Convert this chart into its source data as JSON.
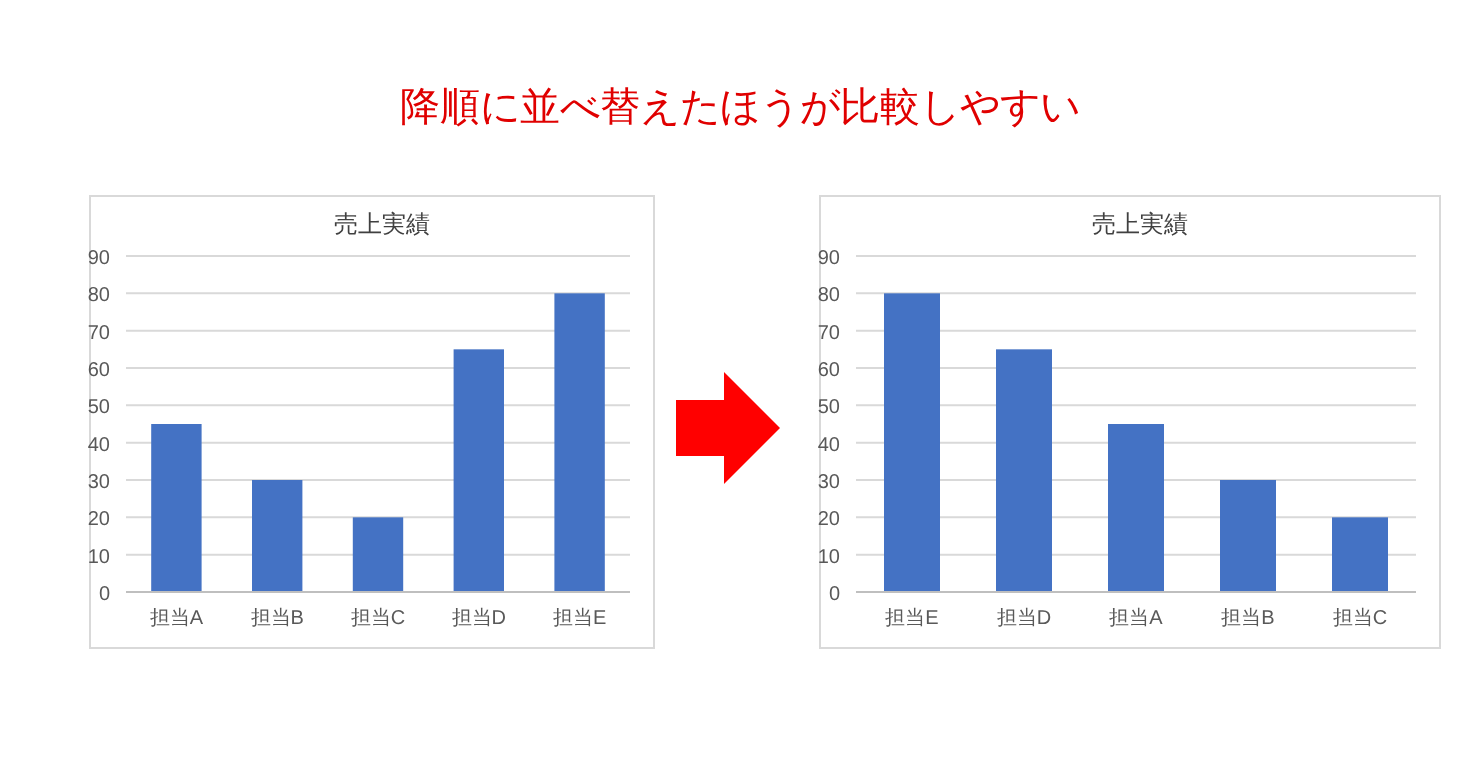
{
  "chart_data": [
    {
      "type": "bar",
      "title": "売上実績",
      "categories": [
        "担当A",
        "担当B",
        "担当C",
        "担当D",
        "担当E"
      ],
      "values": [
        45,
        30,
        20,
        65,
        80
      ],
      "color": "#4472c4",
      "ylim": [
        0,
        90
      ],
      "yticks": [
        0,
        10,
        20,
        30,
        40,
        50,
        60,
        70,
        80,
        90
      ],
      "grid": "y",
      "annotations": [
        "降順に並べ替えたほうが比較しやすい"
      ]
    },
    {
      "type": "bar",
      "title": "売上実績",
      "categories": [
        "担当E",
        "担当D",
        "担当A",
        "担当B",
        "担当C"
      ],
      "values": [
        80,
        65,
        45,
        30,
        20
      ],
      "color": "#4472c4",
      "ylim": [
        0,
        90
      ],
      "yticks": [
        0,
        10,
        20,
        30,
        40,
        50,
        60,
        70,
        80,
        90
      ],
      "grid": "y"
    }
  ]
}
